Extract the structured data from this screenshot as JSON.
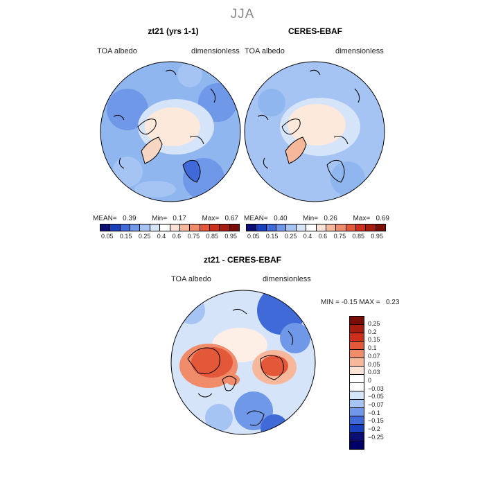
{
  "season": "JJA",
  "panels": [
    {
      "title": "zt21 (yrs 1-1)",
      "variable": "TOA albedo",
      "units": "dimensionless",
      "stats": {
        "mean_label": "MEAN=",
        "mean": "0.39",
        "min_label": "Min=",
        "min": "0.17",
        "max_label": "Max=",
        "max": "0.67"
      }
    },
    {
      "title": "CERES-EBAF",
      "variable": "TOA albedo",
      "units": "dimensionless",
      "stats": {
        "mean_label": "MEAN=",
        "mean": "0.40",
        "min_label": "Min=",
        "min": "0.26",
        "max_label": "Max=",
        "max": "0.69"
      }
    }
  ],
  "abs_colorbar": {
    "ticks": [
      "0.05",
      "0.15",
      "0.25",
      "0.4",
      "0.6",
      "0.75",
      "0.85",
      "0.95"
    ],
    "colors": [
      "#0a0e73",
      "#1a3fbd",
      "#3f6ad8",
      "#6f98e8",
      "#a5c3f3",
      "#d6e4fa",
      "#ffffff",
      "#fde3d5",
      "#f7b79b",
      "#f08c6a",
      "#e4583a",
      "#cc2f1c",
      "#a61d10",
      "#7a0c06"
    ]
  },
  "diff_panel": {
    "title": "zt21 - CERES-EBAF",
    "variable": "TOA albedo",
    "units": "dimensionless",
    "min_label": "MIN =",
    "min": "-0.15",
    "max_label": "MAX =",
    "max": "0.23"
  },
  "diff_colorbar": {
    "labels": [
      "0.25",
      "0.2",
      "0.15",
      "0.1",
      "0.07",
      "0.05",
      "0.03",
      "0",
      "-0.03",
      "-0.05",
      "-0.07",
      "-0.1",
      "-0.15",
      "-0.2",
      "-0.25"
    ],
    "colors": [
      "#7a0c06",
      "#a61d10",
      "#cc2f1c",
      "#e4583a",
      "#f08c6a",
      "#f7b79b",
      "#fde3d5",
      "#ffffff",
      "#ffffff",
      "#d6e4fa",
      "#a5c3f3",
      "#6f98e8",
      "#3f6ad8",
      "#1a3fbd",
      "#0a0e73",
      "#000066"
    ]
  }
}
